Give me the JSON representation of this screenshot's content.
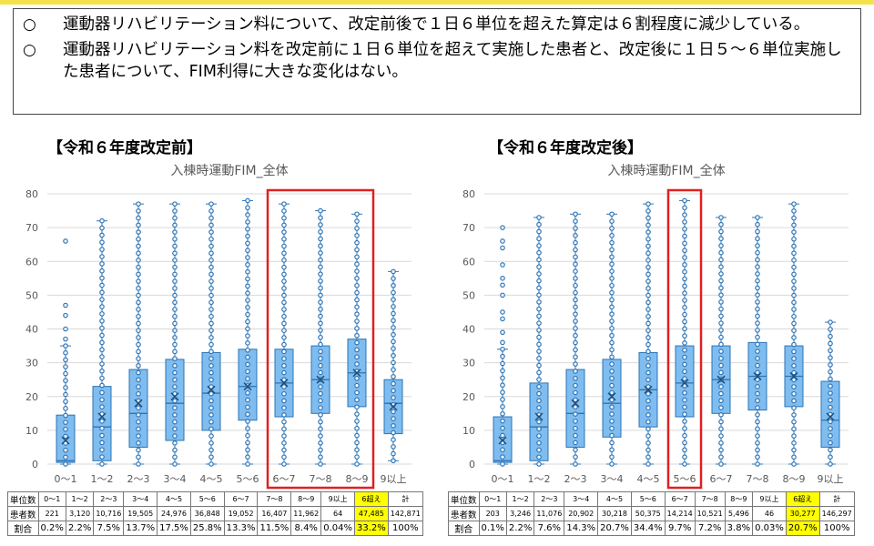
{
  "notes": [
    {
      "bullet": "○",
      "text": "運動器リハビリテーション料について、改定前後で１日６単位を超えた算定は６割程度に減少している。"
    },
    {
      "bullet": "○",
      "text": "運動器リハビリテーション料を改定前に１日６単位を超えて実施した患者と、改定後に１日５～６単位実施した患者について、FIM利得に大きな変化はない。"
    }
  ],
  "colors": {
    "box_fill": "#7fbdf0",
    "box_stroke": "#2e74b5",
    "dot": "#2e74b5",
    "highlight_frame": "#e02020",
    "grid": "#d9d9d9",
    "axis_text": "#595959",
    "table_highlight": "#ffff00"
  },
  "chart_data": [
    {
      "type": "box",
      "section_title": "【令和６年度改定前】",
      "title": "入棟時運動FIM_全体",
      "categories": [
        "0～1",
        "1～2",
        "2～3",
        "3～4",
        "4～5",
        "5～6",
        "6～7",
        "7～8",
        "8～9",
        "9以上"
      ],
      "yticks": [
        0,
        10,
        20,
        30,
        40,
        50,
        60,
        70,
        80
      ],
      "ylim": [
        0,
        80
      ],
      "grid": true,
      "highlight_categories": [
        "6～7",
        "7～8",
        "8～9"
      ],
      "boxes": [
        {
          "min": 0,
          "q1": 0.5,
          "median": 1,
          "q3": 14.5,
          "max": 35,
          "mean": 7,
          "outliers": [
            37,
            40,
            44,
            47,
            66
          ]
        },
        {
          "min": 0,
          "q1": 1,
          "median": 11,
          "q3": 23,
          "max": 72,
          "mean": 14
        },
        {
          "min": 0,
          "q1": 5,
          "median": 15,
          "q3": 28,
          "max": 77,
          "mean": 18
        },
        {
          "min": 0,
          "q1": 7,
          "median": 18,
          "q3": 31,
          "max": 77,
          "mean": 20
        },
        {
          "min": 0,
          "q1": 10,
          "median": 21,
          "q3": 33,
          "max": 77,
          "mean": 22
        },
        {
          "min": 0,
          "q1": 13,
          "median": 23,
          "q3": 34,
          "max": 78,
          "mean": 23
        },
        {
          "min": 0,
          "q1": 14,
          "median": 24,
          "q3": 34,
          "max": 77,
          "mean": 24
        },
        {
          "min": 0,
          "q1": 15,
          "median": 25,
          "q3": 35,
          "max": 75,
          "mean": 25
        },
        {
          "min": 0,
          "q1": 17,
          "median": 27,
          "q3": 37,
          "max": 74,
          "mean": 27
        },
        {
          "min": 1,
          "q1": 9,
          "median": 18,
          "q3": 25,
          "max": 57,
          "mean": 17
        }
      ],
      "table": {
        "headers": [
          "単位数",
          "0～1",
          "1～2",
          "2～3",
          "3～4",
          "4～5",
          "5～6",
          "6～7",
          "7～8",
          "8～9",
          "9以上",
          "6超え",
          "計"
        ],
        "rows": [
          {
            "label": "患者数",
            "values": [
              "221",
              "3,120",
              "10,716",
              "19,505",
              "24,976",
              "36,848",
              "19,052",
              "16,407",
              "11,962",
              "64",
              "47,485",
              "142,871"
            ]
          },
          {
            "label": "割合",
            "values": [
              "0.2%",
              "2.2%",
              "7.5%",
              "13.7%",
              "17.5%",
              "25.8%",
              "13.3%",
              "11.5%",
              "8.4%",
              "0.04%",
              "33.2%",
              "100%"
            ]
          }
        ],
        "highlight_column": "6超え"
      }
    },
    {
      "type": "box",
      "section_title": "【令和６年度改定後】",
      "title": "入棟時運動FIM_全体",
      "categories": [
        "0～1",
        "1～2",
        "2～3",
        "3～4",
        "4～5",
        "5～6",
        "6～7",
        "7～8",
        "8～9",
        "9以上"
      ],
      "yticks": [
        0,
        10,
        20,
        30,
        40,
        50,
        60,
        70,
        80
      ],
      "ylim": [
        0,
        80
      ],
      "grid": true,
      "highlight_categories": [
        "5～6"
      ],
      "boxes": [
        {
          "min": 0,
          "q1": 0.5,
          "median": 1,
          "q3": 14,
          "max": 34,
          "mean": 7,
          "outliers": [
            36,
            39,
            43,
            45,
            50,
            53,
            55,
            59,
            64,
            66,
            70
          ]
        },
        {
          "min": 0,
          "q1": 1,
          "median": 11,
          "q3": 24,
          "max": 73,
          "mean": 14
        },
        {
          "min": 0,
          "q1": 5,
          "median": 15,
          "q3": 28,
          "max": 74,
          "mean": 18
        },
        {
          "min": 0,
          "q1": 8,
          "median": 18,
          "q3": 31,
          "max": 74,
          "mean": 20
        },
        {
          "min": 0,
          "q1": 11,
          "median": 22,
          "q3": 33,
          "max": 77,
          "mean": 22
        },
        {
          "min": 0,
          "q1": 14,
          "median": 24,
          "q3": 35,
          "max": 78,
          "mean": 24
        },
        {
          "min": 0,
          "q1": 15,
          "median": 25,
          "q3": 35,
          "max": 73,
          "mean": 25
        },
        {
          "min": 0,
          "q1": 16,
          "median": 26,
          "q3": 36,
          "max": 73,
          "mean": 26
        },
        {
          "min": 0,
          "q1": 17,
          "median": 26,
          "q3": 35,
          "max": 77,
          "mean": 26
        },
        {
          "min": 0,
          "q1": 5,
          "median": 13,
          "q3": 24.5,
          "max": 42,
          "mean": 14
        }
      ],
      "table": {
        "headers": [
          "単位数",
          "0～1",
          "1～2",
          "2～3",
          "3～4",
          "4～5",
          "5～6",
          "6～7",
          "7～8",
          "8～9",
          "9以上",
          "6超え",
          "計"
        ],
        "rows": [
          {
            "label": "患者数",
            "values": [
              "203",
              "3,246",
              "11,076",
              "20,902",
              "30,218",
              "50,375",
              "14,214",
              "10,521",
              "5,496",
              "46",
              "30,277",
              "146,297"
            ]
          },
          {
            "label": "割合",
            "values": [
              "0.1%",
              "2.2%",
              "7.6%",
              "14.3%",
              "20.7%",
              "34.4%",
              "9.7%",
              "7.2%",
              "3.8%",
              "0.03%",
              "20.7%",
              "100%"
            ]
          }
        ],
        "highlight_column": "6超え"
      }
    }
  ]
}
